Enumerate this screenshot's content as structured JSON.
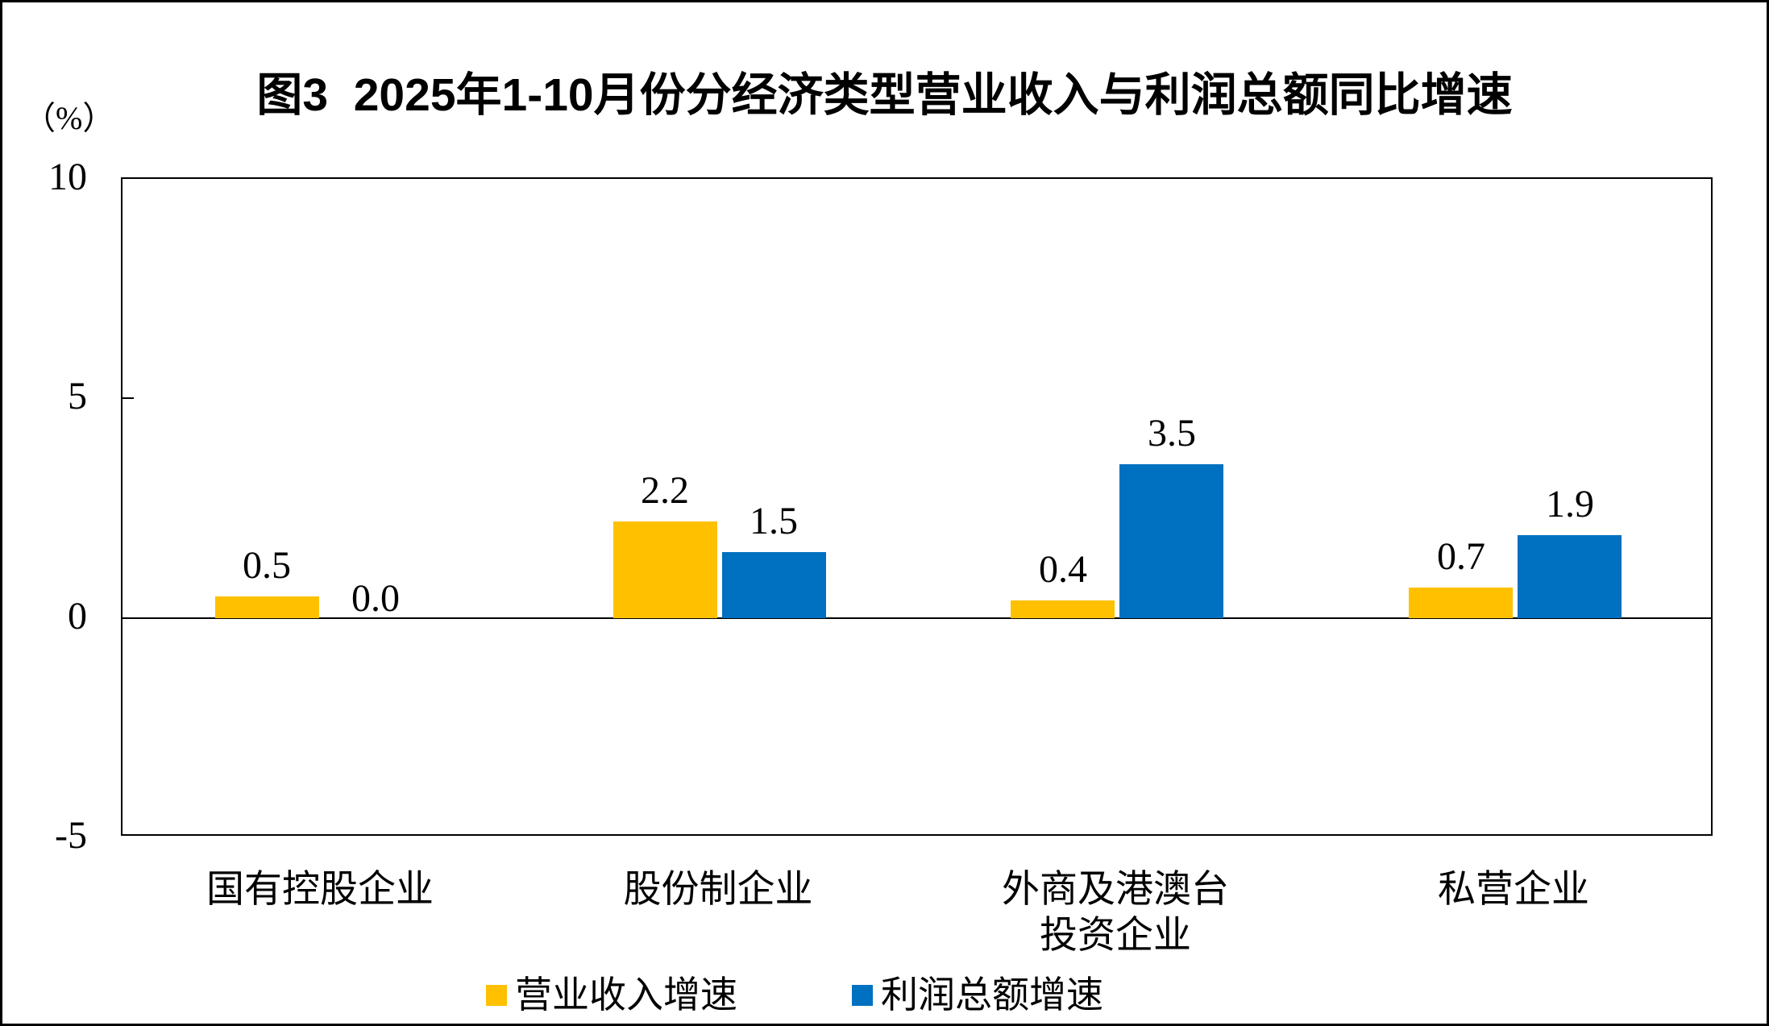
{
  "title": "图3  2025年1-10月份分经济类型营业收入与利润总额同比增速",
  "chart_data": {
    "type": "bar",
    "title": "图3  2025年1-10月份分经济类型营业收入与利润总额同比增速",
    "categories": [
      "国有控股企业",
      "股份制企业",
      "外商及港澳台\n投资企业",
      "私营企业"
    ],
    "series": [
      {
        "name": "营业收入增速",
        "color": "#FFC000",
        "values": [
          0.5,
          2.2,
          0.4,
          0.7
        ]
      },
      {
        "name": "利润总额增速",
        "color": "#0070C0",
        "values": [
          0.0,
          1.5,
          3.5,
          1.9
        ]
      }
    ],
    "data_labels": [
      [
        "0.5",
        "2.2",
        "0.4",
        "0.7"
      ],
      [
        "0.0",
        "1.5",
        "3.5",
        "1.9"
      ]
    ],
    "xlabel": "",
    "ylabel": "（%）",
    "ylim": [
      -5,
      10
    ],
    "yticks": [
      "10",
      "5",
      "0",
      "-5"
    ],
    "grid": false,
    "legend_position": "bottom"
  }
}
